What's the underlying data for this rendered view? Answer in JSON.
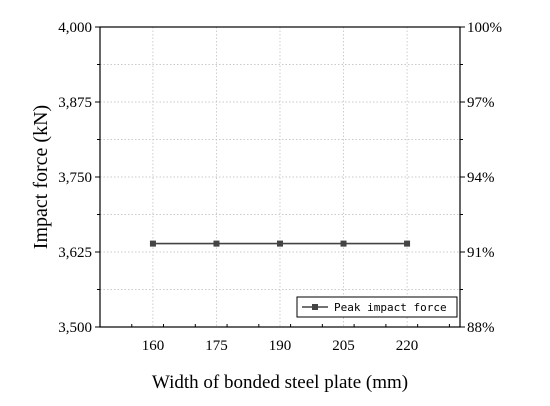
{
  "chart_data": {
    "type": "line",
    "x": [
      160,
      175,
      190,
      205,
      220
    ],
    "x_tick_labels": [
      "160",
      "175",
      "190",
      "205",
      "220"
    ],
    "xlim": [
      147.5,
      232.5
    ],
    "xlabel": "Width of bonded steel plate (mm)",
    "ylabel": "Impact force (kN)",
    "ylim": [
      3500,
      4000
    ],
    "y_ticks": [
      3500,
      3625,
      3750,
      3875,
      4000
    ],
    "y_tick_labels": [
      "3,500",
      "3,625",
      "3,750",
      "3,875",
      "4,000"
    ],
    "y2_ticks": [
      0,
      1,
      2,
      3,
      4
    ],
    "y2_tick_labels": [
      "88%",
      "91%",
      "94%",
      "97%",
      "100%"
    ],
    "grid": true,
    "legend_position": "bottom-right",
    "series": [
      {
        "name": "Peak impact force",
        "values": [
          3639,
          3639,
          3639,
          3639,
          3639
        ],
        "color": "#444444",
        "marker": "square"
      }
    ]
  }
}
